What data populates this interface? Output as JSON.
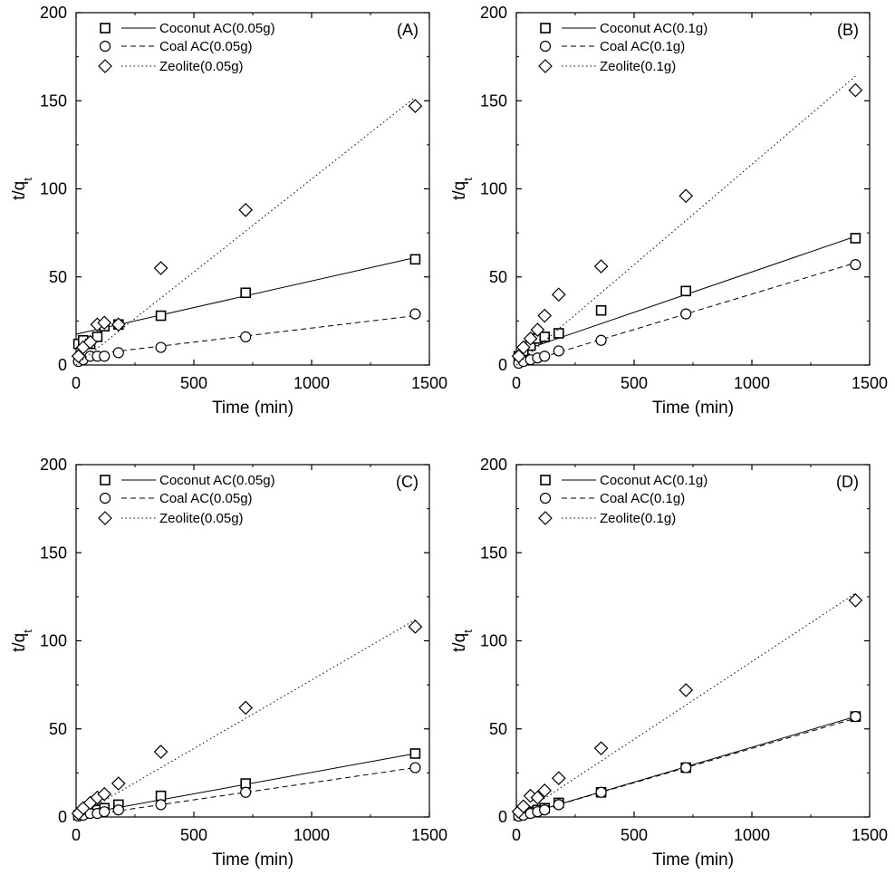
{
  "figure": {
    "panels": [
      {
        "label": "(A)",
        "xlabel": "Time (min)",
        "ylabel_main": "t/q",
        "ylabel_sub": "t",
        "legend": [
          "Coconut AC(0.05g)",
          "Coal AC(0.05g)",
          "Zeolite(0.05g)"
        ]
      },
      {
        "label": "(B)",
        "xlabel": "Time (min)",
        "ylabel_main": "t/q",
        "ylabel_sub": "t",
        "legend": [
          "Coconut AC(0.1g)",
          "Coal AC(0.1g)",
          "Zeolite(0.1g)"
        ]
      },
      {
        "label": "(C)",
        "xlabel": "Time (min)",
        "ylabel_main": "t/q",
        "ylabel_sub": "t",
        "legend": [
          "Coconut AC(0.05g)",
          "Coal AC(0.05g)",
          "Zeolite(0.05g)"
        ]
      },
      {
        "label": "(D)",
        "xlabel": "Time (min)",
        "ylabel_main": "t/q",
        "ylabel_sub": "t",
        "legend": [
          "Coconut AC(0.1g)",
          "Coal AC(0.1g)",
          "Zeolite(0.1g)"
        ]
      }
    ]
  },
  "chart_data": [
    {
      "type": "scatter",
      "panel": "(A)",
      "xlabel": "Time (min)",
      "ylabel": "t/qt",
      "xlim": [
        0,
        1500
      ],
      "ylim": [
        0,
        200
      ],
      "xticks": [
        "0",
        "500",
        "1000",
        "1500"
      ],
      "yticks": [
        "0",
        "50",
        "100",
        "150",
        "200"
      ],
      "legend_position": "top-left",
      "series": [
        {
          "name": "Coconut AC(0.05g)",
          "marker": "square",
          "line": "solid",
          "x": [
            10,
            30,
            60,
            90,
            120,
            180,
            360,
            720,
            1440
          ],
          "y": [
            12,
            14,
            12,
            16,
            22,
            23,
            28,
            41,
            60
          ],
          "fit": [
            [
              0,
              17.5
            ],
            [
              1440,
              61
            ]
          ]
        },
        {
          "name": "Coal AC(0.05g)",
          "marker": "circle",
          "line": "dashed",
          "x": [
            10,
            30,
            60,
            90,
            120,
            180,
            360,
            720,
            1440
          ],
          "y": [
            2,
            3,
            5,
            5,
            5,
            7,
            10,
            16,
            29
          ],
          "fit": [
            [
              0,
              5
            ],
            [
              1440,
              28
            ]
          ]
        },
        {
          "name": "Zeolite(0.05g)",
          "marker": "diamond",
          "line": "dotted",
          "x": [
            10,
            30,
            60,
            90,
            120,
            180,
            360,
            720,
            1440
          ],
          "y": [
            5,
            10,
            13,
            23,
            24,
            23,
            55,
            88,
            147
          ],
          "fit": [
            [
              0,
              0
            ],
            [
              1440,
              152
            ]
          ]
        }
      ]
    },
    {
      "type": "scatter",
      "panel": "(B)",
      "xlabel": "Time (min)",
      "ylabel": "t/qt",
      "xlim": [
        0,
        1500
      ],
      "ylim": [
        0,
        200
      ],
      "xticks": [
        "0",
        "500",
        "1000",
        "1500"
      ],
      "yticks": [
        "0",
        "50",
        "100",
        "150",
        "200"
      ],
      "legend_position": "top-left",
      "series": [
        {
          "name": "Coconut AC(0.1g)",
          "marker": "square",
          "line": "solid",
          "x": [
            10,
            30,
            60,
            90,
            120,
            180,
            360,
            720,
            1440
          ],
          "y": [
            5,
            8,
            11,
            15,
            16,
            18,
            31,
            42,
            72
          ],
          "fit": [
            [
              0,
              7
            ],
            [
              1440,
              73
            ]
          ]
        },
        {
          "name": "Coal AC(0.1g)",
          "marker": "circle",
          "line": "dashed",
          "x": [
            10,
            30,
            60,
            90,
            120,
            180,
            360,
            720,
            1440
          ],
          "y": [
            1,
            2,
            3,
            4,
            5,
            8,
            14,
            29,
            57
          ],
          "fit": [
            [
              0,
              0
            ],
            [
              1440,
              58
            ]
          ]
        },
        {
          "name": "Zeolite(0.1g)",
          "marker": "diamond",
          "line": "dotted",
          "x": [
            10,
            30,
            60,
            90,
            120,
            180,
            360,
            720,
            1440
          ],
          "y": [
            5,
            10,
            15,
            20,
            28,
            40,
            56,
            96,
            156
          ],
          "fit": [
            [
              0,
              0
            ],
            [
              1440,
              164
            ]
          ]
        }
      ]
    },
    {
      "type": "scatter",
      "panel": "(C)",
      "xlabel": "Time (min)",
      "ylabel": "t/qt",
      "xlim": [
        0,
        1500
      ],
      "ylim": [
        0,
        200
      ],
      "xticks": [
        "0",
        "500",
        "1000",
        "1500"
      ],
      "yticks": [
        "0",
        "50",
        "100",
        "150",
        "200"
      ],
      "legend_position": "top-left",
      "series": [
        {
          "name": "Coconut AC(0.05g)",
          "marker": "square",
          "line": "solid",
          "x": [
            10,
            30,
            60,
            90,
            120,
            180,
            360,
            720,
            1440
          ],
          "y": [
            1,
            2,
            3,
            4,
            5,
            7,
            12,
            19,
            36
          ],
          "fit": [
            [
              0,
              1
            ],
            [
              1440,
              36
            ]
          ]
        },
        {
          "name": "Coal AC(0.05g)",
          "marker": "circle",
          "line": "dashed",
          "x": [
            10,
            30,
            60,
            90,
            120,
            180,
            360,
            720,
            1440
          ],
          "y": [
            0.5,
            1,
            2,
            2,
            3,
            4,
            7,
            14,
            28
          ],
          "fit": [
            [
              0,
              0
            ],
            [
              1440,
              28
            ]
          ]
        },
        {
          "name": "Zeolite(0.05g)",
          "marker": "diamond",
          "line": "dotted",
          "x": [
            10,
            30,
            60,
            90,
            120,
            180,
            360,
            720,
            1440
          ],
          "y": [
            2,
            5,
            8,
            11,
            13,
            19,
            37,
            62,
            108
          ],
          "fit": [
            [
              0,
              0
            ],
            [
              1440,
              112
            ]
          ]
        }
      ]
    },
    {
      "type": "scatter",
      "panel": "(D)",
      "xlabel": "Time (min)",
      "ylabel": "t/qt",
      "xlim": [
        0,
        1500
      ],
      "ylim": [
        0,
        200
      ],
      "xticks": [
        "0",
        "500",
        "1000",
        "1500"
      ],
      "yticks": [
        "0",
        "50",
        "100",
        "150",
        "200"
      ],
      "legend_position": "top-left",
      "series": [
        {
          "name": "Coconut AC(0.1g)",
          "marker": "square",
          "line": "solid",
          "x": [
            10,
            30,
            60,
            90,
            120,
            180,
            360,
            720,
            1440
          ],
          "y": [
            1,
            2,
            3,
            4,
            5,
            8,
            14,
            28,
            57
          ],
          "fit": [
            [
              0,
              0
            ],
            [
              1440,
              57
            ]
          ]
        },
        {
          "name": "Coal AC(0.1g)",
          "marker": "circle",
          "line": "dashed",
          "x": [
            10,
            30,
            60,
            90,
            120,
            180,
            360,
            720,
            1440
          ],
          "y": [
            0.5,
            1,
            2,
            3,
            4,
            7,
            14,
            28,
            57
          ],
          "fit": [
            [
              0,
              0
            ],
            [
              1440,
              56
            ]
          ]
        },
        {
          "name": "Zeolite(0.1g)",
          "marker": "diamond",
          "line": "dotted",
          "x": [
            10,
            30,
            60,
            90,
            120,
            180,
            360,
            720,
            1440
          ],
          "y": [
            3,
            6,
            12,
            11,
            15,
            22,
            39,
            72,
            123
          ],
          "fit": [
            [
              0,
              0
            ],
            [
              1440,
              127
            ]
          ]
        }
      ]
    }
  ]
}
